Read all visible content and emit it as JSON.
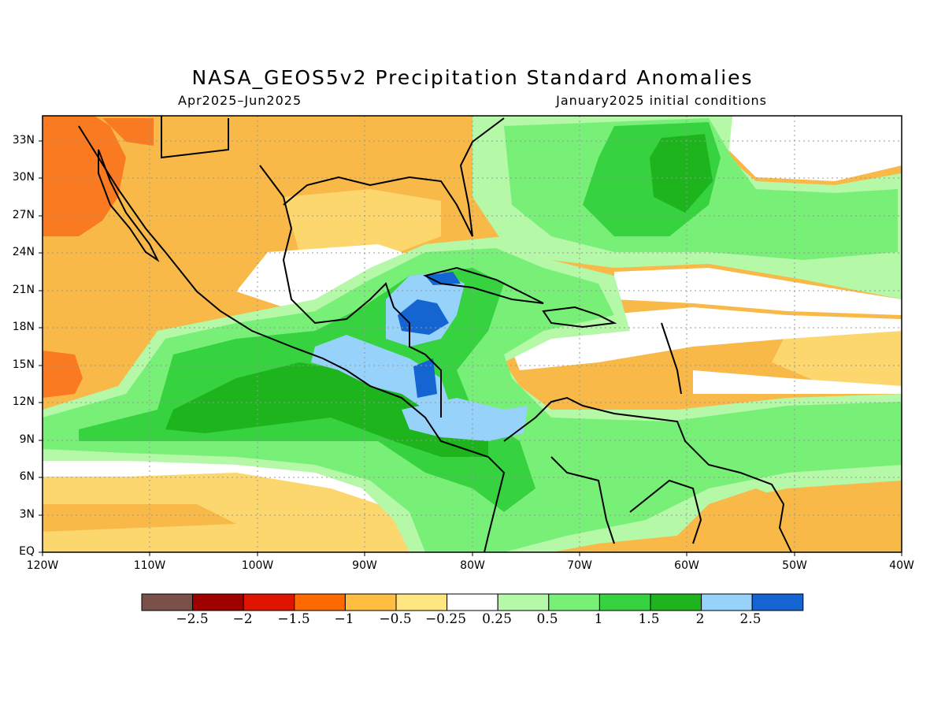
{
  "title": "NASA_GEOS5v2 Precipitation Standard Anomalies",
  "subtitle_left": "Apr2025–Jun2025",
  "subtitle_right": "January2025 initial conditions",
  "axes": {
    "x_labels": [
      "120W",
      "110W",
      "100W",
      "90W",
      "80W",
      "70W",
      "60W",
      "50W",
      "40W"
    ],
    "y_labels": [
      "EQ",
      "3N",
      "6N",
      "9N",
      "12N",
      "15N",
      "18N",
      "21N",
      "24N",
      "27N",
      "30N",
      "33N"
    ],
    "grid": true
  },
  "colorbar": {
    "labels": [
      "−2.5",
      "−2",
      "−1.5",
      "−1",
      "−0.5",
      "−0.25",
      "0.25",
      "0.5",
      "1",
      "1.5",
      "2",
      "2.5"
    ],
    "colors": [
      "#7a5048",
      "#a00000",
      "#e01400",
      "#ff6a00",
      "#ffbe40",
      "#ffe680",
      "#ffffff",
      "#b4f8a8",
      "#78f078",
      "#37d240",
      "#1eb41e",
      "#96d2fa",
      "#1464d2"
    ]
  },
  "colors": {
    "ocean_dry": "#fbd76e",
    "moderate_dry": "#f9b948",
    "strong_dry": "#f97a20",
    "neutral": "#ffffff",
    "light_wet": "#b4f8a8",
    "wet": "#78f078",
    "moderate_wet": "#37d240",
    "strong_wet": "#1eb41e",
    "very_wet": "#96d2fa",
    "extreme_wet": "#1464d2",
    "coastline": "#000000"
  }
}
